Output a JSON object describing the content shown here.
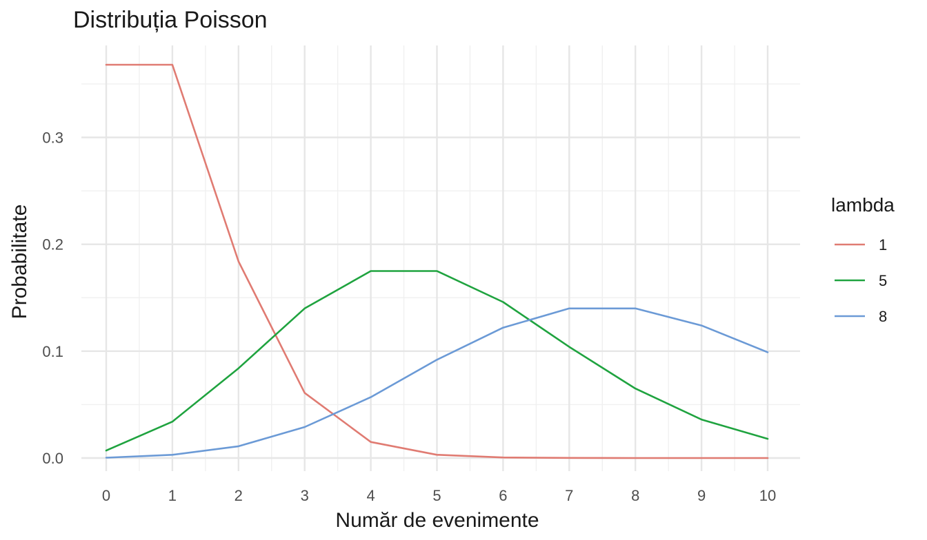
{
  "chart_data": {
    "type": "line",
    "title": "Distribuția Poisson",
    "xlabel": "Număr de evenimente",
    "ylabel": "Probabilitate",
    "x": [
      0,
      1,
      2,
      3,
      4,
      5,
      6,
      7,
      8,
      9,
      10
    ],
    "xlim": [
      0,
      10
    ],
    "ylim": [
      0,
      0.368
    ],
    "x_ticks": [
      "0",
      "1",
      "2",
      "3",
      "4",
      "5",
      "6",
      "7",
      "8",
      "9",
      "10"
    ],
    "y_ticks": [
      "0.0",
      "0.1",
      "0.2",
      "0.3"
    ],
    "grid": true,
    "legend": {
      "title": "lambda",
      "position": "right"
    },
    "series": [
      {
        "name": "1",
        "color": "#e07b72",
        "values": [
          0.368,
          0.368,
          0.184,
          0.061,
          0.015,
          0.003,
          0.0005,
          0.0001,
          0.0,
          0.0,
          0.0
        ]
      },
      {
        "name": "5",
        "color": "#1fa33f",
        "values": [
          0.007,
          0.034,
          0.084,
          0.14,
          0.175,
          0.175,
          0.146,
          0.104,
          0.065,
          0.036,
          0.018
        ]
      },
      {
        "name": "8",
        "color": "#6b9ad6",
        "values": [
          0.0003,
          0.003,
          0.011,
          0.029,
          0.057,
          0.092,
          0.122,
          0.14,
          0.14,
          0.124,
          0.099
        ]
      }
    ]
  }
}
